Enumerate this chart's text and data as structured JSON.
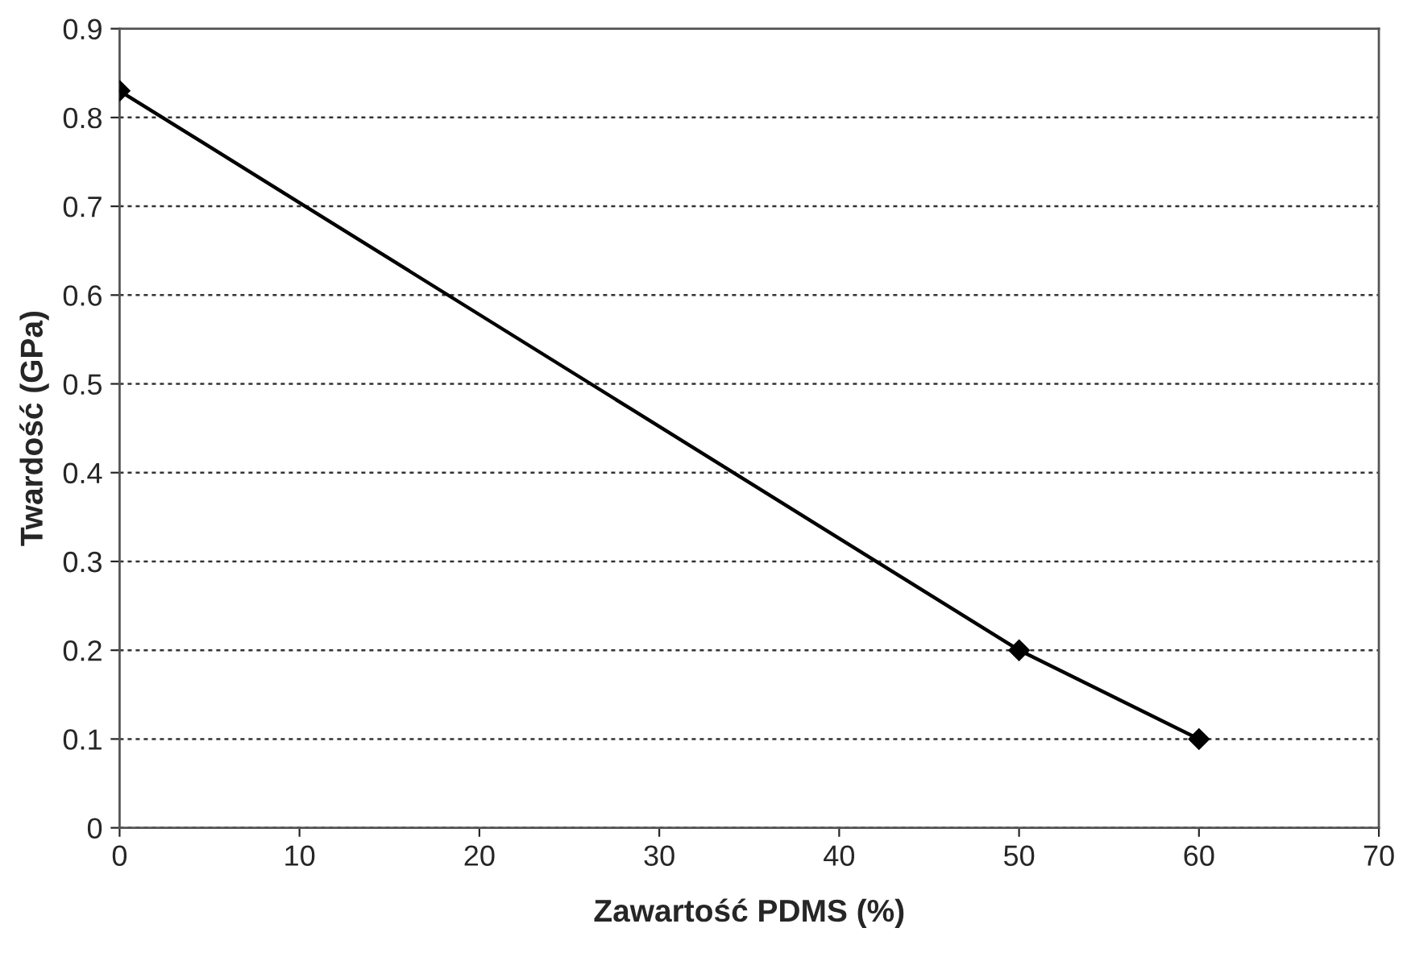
{
  "chart_data": {
    "type": "line",
    "xlabel": "Zawartość PDMS (%)",
    "ylabel": "Twardość (GPa)",
    "x": [
      0,
      50,
      60
    ],
    "series": [
      {
        "color": "#000000",
        "values": [
          0.83,
          0.2,
          0.1
        ]
      }
    ],
    "xlim": [
      0,
      70
    ],
    "xticks": [
      0,
      10,
      20,
      30,
      40,
      50,
      60,
      70
    ],
    "ylim": [
      0,
      0.9
    ],
    "yticks": [
      0,
      0.1,
      0.2,
      0.3,
      0.4,
      0.5,
      0.6,
      0.7,
      0.8,
      0.9
    ],
    "grid": "y",
    "marker": "diamond",
    "line_style": "solid"
  }
}
